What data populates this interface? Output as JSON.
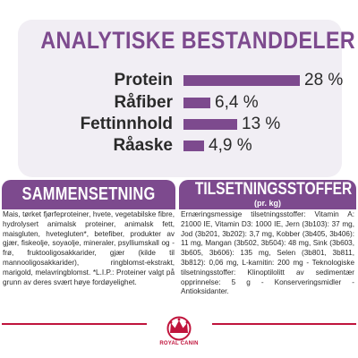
{
  "analysis": {
    "title": "ANALYTISKE BESTANDDELER",
    "items": [
      {
        "label": "Protein",
        "value": "28 %",
        "amount": 28
      },
      {
        "label": "Råfiber",
        "value": "6,4 %",
        "amount": 6.4
      },
      {
        "label": "Fettinnhold",
        "value": "13 %",
        "amount": 13
      },
      {
        "label": "Råaske",
        "value": "4,9 %",
        "amount": 4.9
      }
    ]
  },
  "composition": {
    "heading": "SAMMENSETNING",
    "text": "Mais, tørket fjørfeproteiner, hvete, vegetabilske fibre, hydrolysert animalsk proteiner, animalsk fett, maisgluten, hvetegluten*, betefiber, produkter av gjær, fiskeolje, soyaolje, mineraler, psylliumskall og -frø, fruktooligosakkarider, gjær (kilde til mannooligosakkarider), ringblomst-ekstrakt, marigold, melavringblomst. *L.I.P.: Proteiner valgt på grunn av deres svært høye fordøyelighet."
  },
  "additives": {
    "heading": "TILSETNINGSSTOFFER",
    "subheading": "(pr. kg)",
    "text": "Ernæringsmessige tilsetningsstoffer: Vitamin A: 21000 IE, Vitamin D3: 1000 IE, Jern (3b103): 37 mg, Jod (3b201, 3b202): 3,7 mg, Kobber (3b405, 3b406): 11 mg, Mangan (3b502, 3b504): 48 mg, Sink (3b603, 3b605, 3b606): 135 mg, Selen (3b801, 3b811, 3b812): 0,06 mg, L-karnitin: 200 mg - Teknologiske tilsetningsstoffer: Klinoptilolitt av sedimentær opprinnelse: 5 g - Konserveringsmidler - Antioksidanter."
  },
  "brand": {
    "name": "ROYAL CANIN",
    "color": "#c0143c"
  },
  "colors": {
    "accent": "#7d4a8e",
    "panel": "#f1eef4"
  }
}
